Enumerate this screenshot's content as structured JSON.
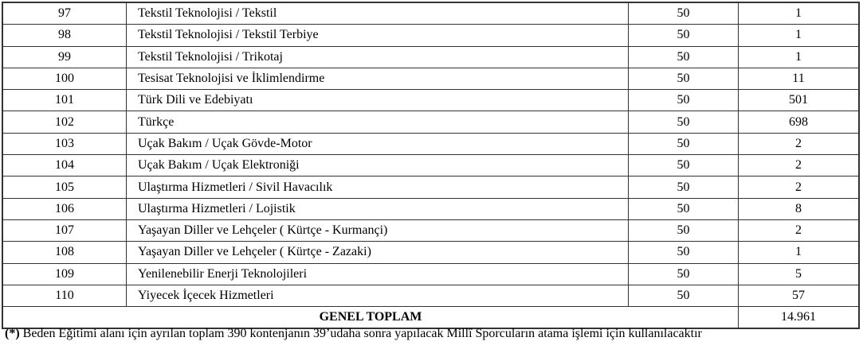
{
  "rows": [
    {
      "no": "97",
      "name": "Tekstil Teknolojisi  / Tekstil",
      "score": "50",
      "count": "1"
    },
    {
      "no": "98",
      "name": "Tekstil Teknolojisi  / Tekstil Terbiye",
      "score": "50",
      "count": "1"
    },
    {
      "no": "99",
      "name": "Tekstil Teknolojisi / Trikotaj",
      "score": "50",
      "count": "1"
    },
    {
      "no": "100",
      "name": "Tesisat Teknolojisi ve İklimlendirme",
      "score": "50",
      "count": "11"
    },
    {
      "no": "101",
      "name": "Türk Dili ve Edebiyatı",
      "score": "50",
      "count": "501"
    },
    {
      "no": "102",
      "name": "Türkçe",
      "score": "50",
      "count": "698"
    },
    {
      "no": "103",
      "name": "Uçak Bakım / Uçak Gövde-Motor",
      "score": "50",
      "count": "2"
    },
    {
      "no": "104",
      "name": "Uçak Bakım / Uçak Elektroniği",
      "score": "50",
      "count": "2"
    },
    {
      "no": "105",
      "name": "Ulaştırma Hizmetleri  / Sivil Havacılık",
      "score": "50",
      "count": "2"
    },
    {
      "no": "106",
      "name": "Ulaştırma Hizmetleri / Lojistik",
      "score": "50",
      "count": "8"
    },
    {
      "no": "107",
      "name": "Yaşayan Diller ve Lehçeler ( Kürtçe - Kurmançi)",
      "score": "50",
      "count": "2"
    },
    {
      "no": "108",
      "name": "Yaşayan Diller ve Lehçeler ( Kürtçe - Zazaki)",
      "score": "50",
      "count": "1"
    },
    {
      "no": "109",
      "name": "Yenilenebilir Enerji Teknolojileri",
      "score": "50",
      "count": "5"
    },
    {
      "no": "110",
      "name": "Yiyecek İçecek Hizmetleri",
      "score": "50",
      "count": "57"
    }
  ],
  "total": {
    "label": "GENEL TOPLAM",
    "value": "14.961"
  },
  "footnote": {
    "marker": "(*)",
    "text": " Beden Eğitimi alanı için ayrılan toplam 390 kontenjanın  39’udaha sonra yapılacak Millî Sporcuların atama işlemi için kullanılacaktır"
  }
}
